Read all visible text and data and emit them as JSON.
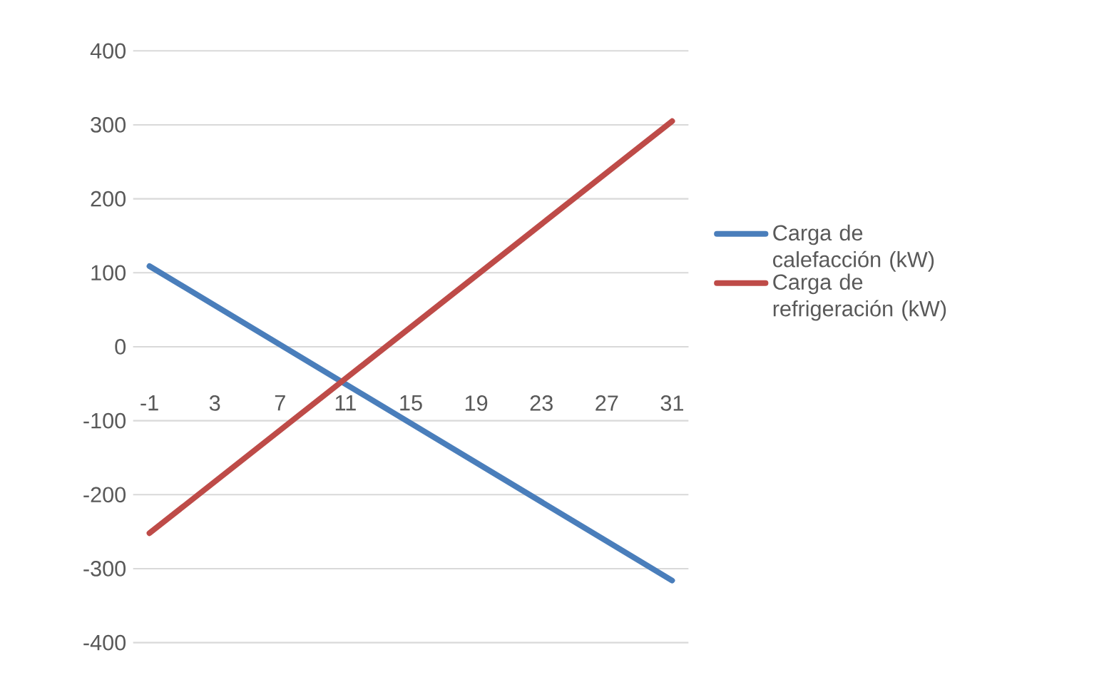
{
  "chart_data": {
    "type": "line",
    "x": [
      -1,
      31
    ],
    "series": [
      {
        "name": "Carga de calefacción (kW)",
        "color": "#4a7ebb",
        "values": [
          109,
          -316
        ]
      },
      {
        "name": "Carga de refrigeración (kW)",
        "color": "#be4b48",
        "values": [
          -252,
          305
        ]
      }
    ],
    "xlim": [
      -2,
      32
    ],
    "xticks": [
      -1,
      3,
      7,
      11,
      15,
      19,
      23,
      27,
      31
    ],
    "ylim": [
      -400,
      400
    ],
    "yticks": [
      -400,
      -300,
      -200,
      -100,
      0,
      100,
      200,
      300,
      400
    ],
    "grid": "y",
    "legend": "right",
    "marker": "none",
    "line_style": "solid"
  }
}
